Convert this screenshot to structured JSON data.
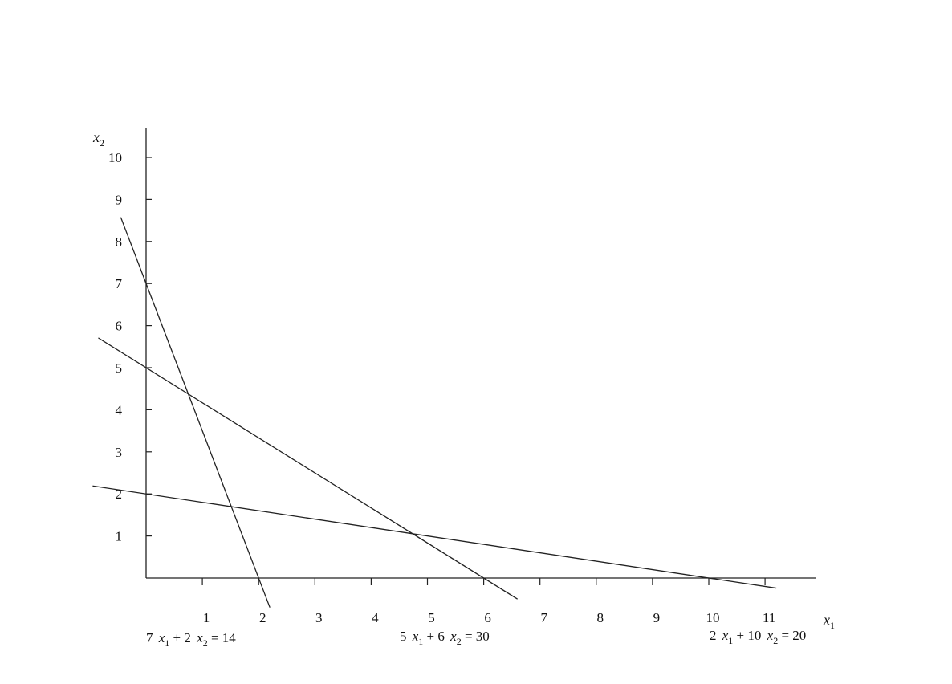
{
  "chart_data": {
    "type": "line",
    "title": "",
    "xlabel": "x1",
    "ylabel": "x2",
    "xlim": [
      0,
      11.9
    ],
    "ylim": [
      0,
      10.7
    ],
    "grid": false,
    "x_ticks": [
      1,
      2,
      3,
      4,
      5,
      6,
      7,
      8,
      9,
      10,
      11
    ],
    "y_ticks": [
      1,
      2,
      3,
      4,
      5,
      6,
      7,
      8,
      9,
      10
    ],
    "series": [
      {
        "equation": "7 x1 + 2 x2 = 14",
        "coef": [
          7,
          2,
          14
        ],
        "x": [
          -0.45,
          2.2
        ],
        "color": "#222222"
      },
      {
        "equation": "5 x1 + 6 x2 = 30",
        "coef": [
          5,
          6,
          30
        ],
        "x": [
          -0.85,
          6.6
        ],
        "color": "#222222"
      },
      {
        "equation": "2 x1 + 10 x2 = 20",
        "coef": [
          2,
          10,
          20
        ],
        "x": [
          -0.95,
          11.2
        ],
        "color": "#222222"
      }
    ]
  }
}
